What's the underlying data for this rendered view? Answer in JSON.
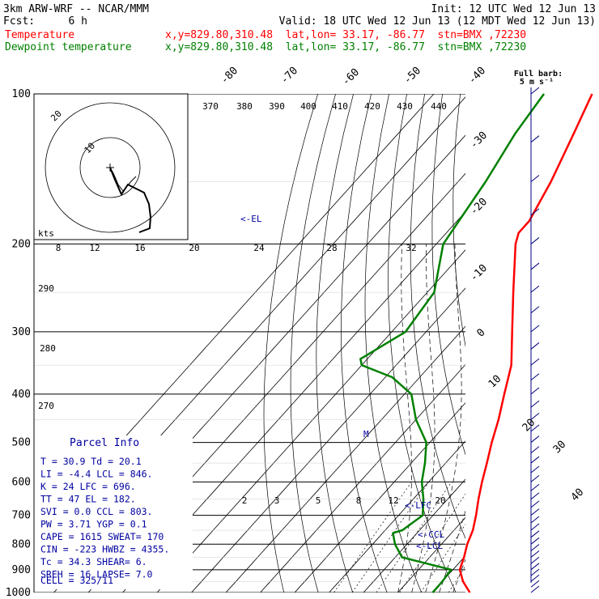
{
  "header": {
    "model": "3km ARW-WRF -- NCAR/MMM",
    "init": "Init: 12 UTC Wed 12 Jun 13",
    "fcst_label": "Fcst:",
    "fcst_value": "6 h",
    "valid": "Valid: 18 UTC Wed 12 Jun 13 (12 MDT Wed 12 Jun 13)",
    "temp_name": "Temperature",
    "temp_loc": "x,y=829.80,310.48  lat,lon= 33.17, -86.77  stn=BMX ,72230",
    "dew_name": "Dewpoint temperature",
    "dew_loc": "x,y=829.80,310.48  lat,lon= 33.17, -86.77  stn=BMX ,72230"
  },
  "barb_legend": {
    "line1": "Full barb:",
    "line2": "5 m s⁻¹"
  },
  "parcel": {
    "title": "Parcel Info",
    "rows": [
      {
        "k1": "T",
        "v1": "30.9",
        "k2": "Td",
        "v2": "20.1"
      },
      {
        "k1": "LI",
        "v1": "-4.4",
        "k2": "LCL",
        "v2": "846."
      },
      {
        "k1": "K",
        "v1": "24",
        "k2": "LFC",
        "v2": "696."
      },
      {
        "k1": "TT",
        "v1": "47",
        "k2": "EL",
        "v2": "182."
      },
      {
        "k1": "SVI",
        "v1": "0.0",
        "k2": "CCL",
        "v2": "803."
      },
      {
        "k1": "PW",
        "v1": "3.71",
        "k2": "YGP",
        "v2": "0.1"
      },
      {
        "k1": "CAPE",
        "v1": "1615",
        "k2": "SWEAT",
        "v2": "170"
      },
      {
        "k1": "CIN",
        "v1": "-223",
        "k2": "HWBZ",
        "v2": "4355."
      },
      {
        "k1": "Tc",
        "v1": "34.3",
        "k2": "SHEAR",
        "v2": "6."
      },
      {
        "k1": "SREH",
        "v1": "16",
        "k2": "LAPSE",
        "v2": "7.0"
      }
    ],
    "cell": "CELL = 325/11"
  },
  "markers": {
    "el": "<-EL",
    "lfc": "<-LFC",
    "ccl": "<-CCL",
    "lcl": "<-LCL",
    "m": "M"
  },
  "hodo": {
    "label_20": "20",
    "label_10": "10",
    "kts": "kts"
  },
  "colors": {
    "temperature": "#ff0000",
    "dewpoint": "#008000",
    "parcel_text": "#0000a0",
    "wind": "#000080"
  },
  "chart_data": {
    "type": "line",
    "pressure_levels": [
      100,
      200,
      300,
      400,
      500,
      600,
      700,
      800,
      900,
      1000
    ],
    "isotherm_labels": [
      "-80",
      "-70",
      "-60",
      "-50",
      "-40",
      "-30",
      "-20",
      "-10",
      "0",
      "10",
      "20",
      "30",
      "40"
    ],
    "theta_labels": [
      "370",
      "380",
      "390",
      "400",
      "410",
      "420",
      "430",
      "440",
      "290",
      "280",
      "270"
    ],
    "mixing_ratio_labels": [
      "2",
      "3",
      "5",
      "8",
      "12",
      "20"
    ],
    "hodo_speed_labels": [
      "8",
      "12",
      "16",
      "20",
      "24",
      "28",
      "32"
    ],
    "series": [
      {
        "name": "Temperature",
        "color": "#ff0000",
        "points": [
          [
            1000,
            30.9
          ],
          [
            950,
            26
          ],
          [
            900,
            22
          ],
          [
            850,
            20
          ],
          [
            800,
            17.5
          ],
          [
            750,
            15.5
          ],
          [
            700,
            12.5
          ],
          [
            650,
            9
          ],
          [
            600,
            5.5
          ],
          [
            550,
            2
          ],
          [
            500,
            -2
          ],
          [
            450,
            -6
          ],
          [
            400,
            -11
          ],
          [
            350,
            -16.5
          ],
          [
            300,
            -25
          ],
          [
            250,
            -35
          ],
          [
            200,
            -47
          ],
          [
            190,
            -49
          ],
          [
            180,
            -49
          ],
          [
            150,
            -53
          ],
          [
            120,
            -59
          ],
          [
            100,
            -64
          ]
        ]
      },
      {
        "name": "Dewpoint temperature",
        "color": "#008000",
        "points": [
          [
            1000,
            20.1
          ],
          [
            950,
            20
          ],
          [
            900,
            19.5
          ],
          [
            850,
            2
          ],
          [
            800,
            -3.5
          ],
          [
            760,
            -7
          ],
          [
            750,
            -5
          ],
          [
            700,
            -3
          ],
          [
            650,
            -7
          ],
          [
            600,
            -12
          ],
          [
            550,
            -16
          ],
          [
            500,
            -21
          ],
          [
            450,
            -30
          ],
          [
            400,
            -38
          ],
          [
            370,
            -48
          ],
          [
            350,
            -60
          ],
          [
            340,
            -62
          ],
          [
            300,
            -56
          ],
          [
            250,
            -58
          ],
          [
            200,
            -68
          ],
          [
            150,
            -72
          ],
          [
            120,
            -76
          ],
          [
            100,
            -78
          ]
        ]
      }
    ]
  }
}
